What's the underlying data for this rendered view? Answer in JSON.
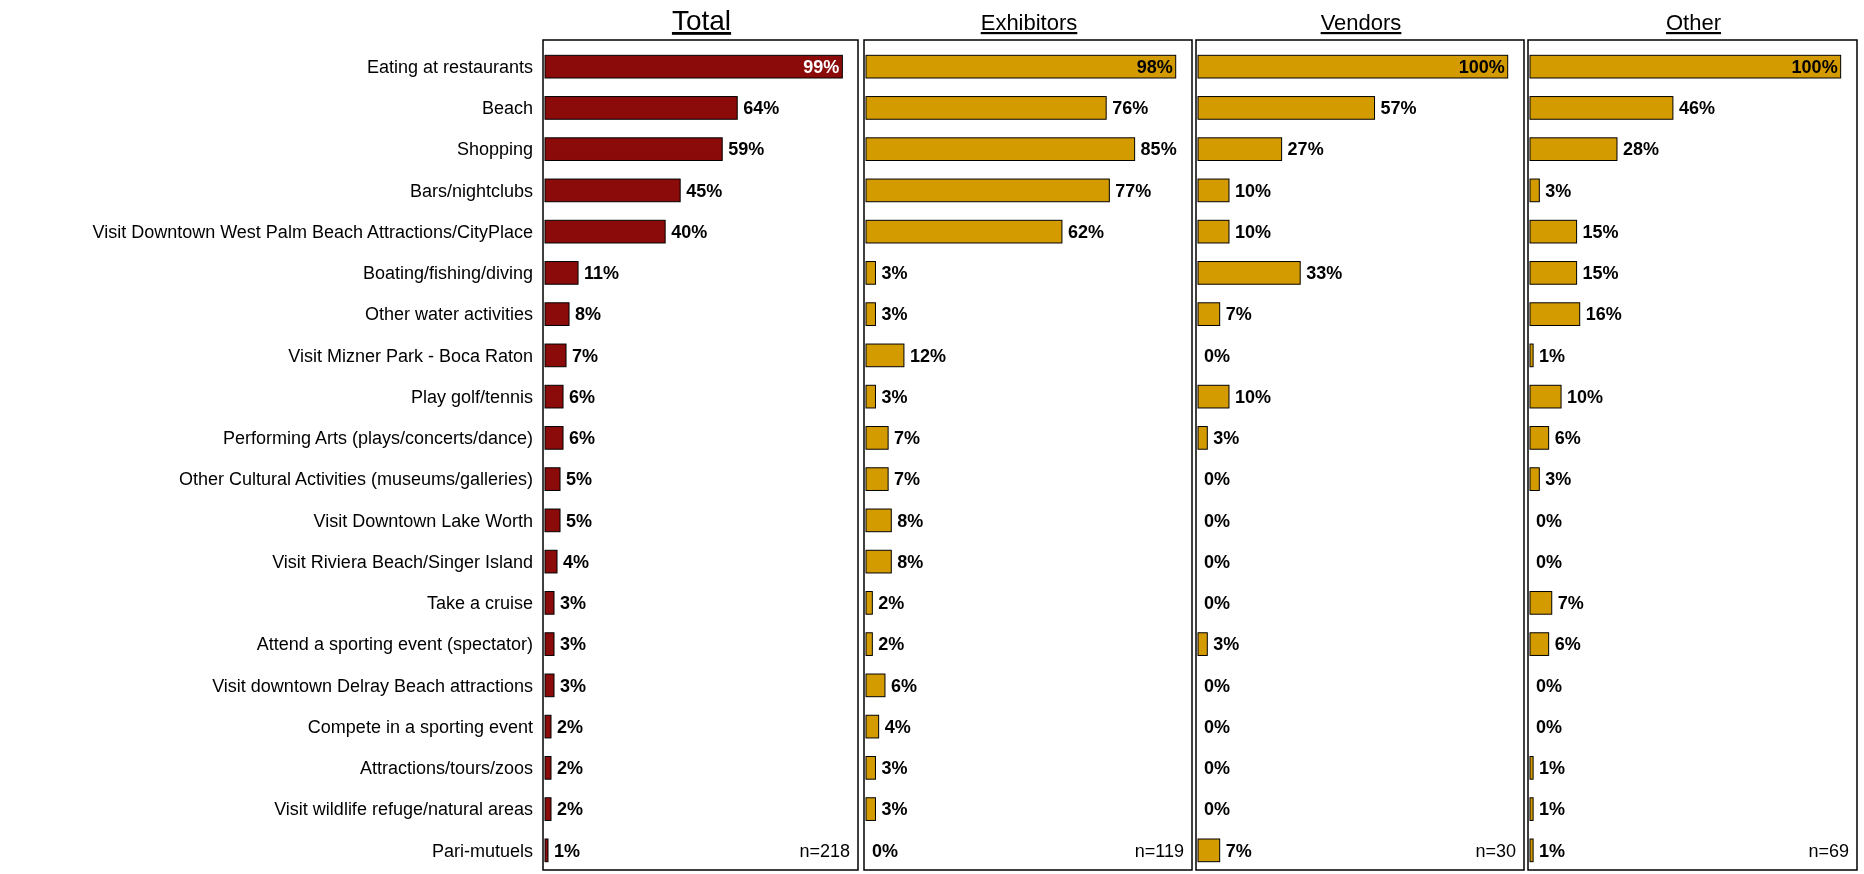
{
  "chart_data": [
    {
      "type": "bar",
      "orientation": "horizontal",
      "title": "Total",
      "tick_labels": "y",
      "data_labels": true,
      "annotations": [
        "n=218"
      ],
      "categories": [
        "Eating at restaurants",
        "Beach",
        "Shopping",
        "Bars/nightclubs",
        "Visit Downtown West Palm Beach Attractions/CityPlace",
        "Boating/fishing/diving",
        "Other water activities",
        "Visit Mizner Park - Boca Raton",
        "Play golf/tennis",
        "Performing Arts (plays/concerts/dance)",
        "Other Cultural Activities (museums/galleries)",
        "Visit Downtown Lake Worth",
        "Visit Riviera Beach/Singer Island",
        "Take a cruise",
        "Attend a sporting event (spectator)",
        "Visit downtown Delray Beach attractions",
        "Compete in a sporting event",
        "Attractions/tours/zoos",
        "Visit wildlife refuge/natural areas",
        "Pari-mutuels"
      ],
      "series": [
        {
          "color": "#8b0a0a",
          "values": [
            99,
            64,
            59,
            45,
            40,
            11,
            8,
            7,
            6,
            6,
            5,
            5,
            4,
            3,
            3,
            3,
            2,
            2,
            2,
            1
          ],
          "value_labels": [
            "99%",
            "64%",
            "59%",
            "45%",
            "40%",
            "11%",
            "8%",
            "7%",
            "6%",
            "6%",
            "5%",
            "5%",
            "4%",
            "3%",
            "3%",
            "3%",
            "2%",
            "2%",
            "2%",
            "1%"
          ]
        }
      ]
    },
    {
      "type": "bar",
      "orientation": "horizontal",
      "title": "Exhibitors",
      "data_labels": true,
      "annotations": [
        "n=119"
      ],
      "categories": [
        null,
        null,
        null,
        null,
        null,
        null,
        null,
        null,
        null,
        null,
        null,
        null,
        null,
        null,
        null,
        null,
        null,
        null,
        null,
        null
      ],
      "series": [
        {
          "color": "#d49b00",
          "values": [
            98,
            76,
            85,
            77,
            62,
            3,
            3,
            12,
            3,
            7,
            7,
            8,
            8,
            2,
            2,
            6,
            4,
            3,
            3,
            0
          ],
          "value_labels": [
            "98%",
            "76%",
            "85%",
            "77%",
            "62%",
            "3%",
            "3%",
            "12%",
            "3%",
            "7%",
            "7%",
            "8%",
            "8%",
            "2%",
            "2%",
            "6%",
            "4%",
            "3%",
            "3%",
            "0%"
          ]
        }
      ]
    },
    {
      "type": "bar",
      "orientation": "horizontal",
      "title": "Vendors",
      "data_labels": true,
      "annotations": [
        "n=30"
      ],
      "categories": [
        null,
        null,
        null,
        null,
        null,
        null,
        null,
        null,
        null,
        null,
        null,
        null,
        null,
        null,
        null,
        null,
        null,
        null,
        null,
        null
      ],
      "series": [
        {
          "color": "#d49b00",
          "values": [
            100,
            57,
            27,
            10,
            10,
            33,
            7,
            0,
            10,
            3,
            0,
            0,
            0,
            0,
            3,
            0,
            0,
            0,
            0,
            7
          ],
          "value_labels": [
            "100%",
            "57%",
            "27%",
            "10%",
            "10%",
            "33%",
            "7%",
            "0%",
            "10%",
            "3%",
            "0%",
            "0%",
            "0%",
            "0%",
            "3%",
            "0%",
            "0%",
            "0%",
            "0%",
            "7%"
          ]
        }
      ]
    },
    {
      "type": "bar",
      "orientation": "horizontal",
      "title": "Other",
      "data_labels": true,
      "annotations": [
        "n=69"
      ],
      "categories": [
        null,
        null,
        null,
        null,
        null,
        null,
        null,
        null,
        null,
        null,
        null,
        null,
        null,
        null,
        null,
        null,
        null,
        null,
        null,
        null
      ],
      "series": [
        {
          "color": "#d49b00",
          "values": [
            100,
            46,
            28,
            3,
            15,
            15,
            16,
            1,
            10,
            6,
            3,
            0,
            0,
            7,
            6,
            0,
            0,
            1,
            1,
            1
          ],
          "value_labels": [
            "100%",
            "46%",
            "28%",
            "3%",
            "15%",
            "15%",
            "16%",
            "1%",
            "10%",
            "6%",
            "3%",
            "0%",
            "0%",
            "7%",
            "6%",
            "0%",
            "0%",
            "1%",
            "1%",
            "1%"
          ]
        }
      ]
    }
  ]
}
